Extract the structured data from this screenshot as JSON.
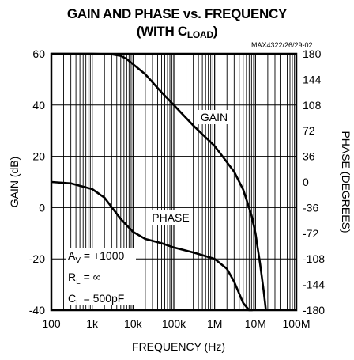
{
  "header": {
    "title_line1": "GAIN AND PHASE  vs. FREQUENCY",
    "title_line2_prefix": "(WITH C",
    "title_line2_sub": "LOAD",
    "title_line2_suffix": ")",
    "part_code": "MAX4322/26/29-02"
  },
  "conditions": {
    "line1_sym": "A",
    "line1_sub": "V",
    "line1_val": " = +1000",
    "line2_sym": "R",
    "line2_sub": "L",
    "line2_val": " = ∞",
    "line3_sym": "C",
    "line3_sub": "L",
    "line3_val": " = 500pF"
  },
  "chart_data": {
    "type": "line",
    "title": "GAIN AND PHASE vs. FREQUENCY (WITH CLOAD)",
    "xlabel": "FREQUENCY (Hz)",
    "ylabel": "GAIN (dB)",
    "ylabel_right": "PHASE (DEGREES)",
    "xscale": "log",
    "xlim": [
      100,
      100000000
    ],
    "ylim": [
      -40,
      60
    ],
    "ylim_right": [
      -180,
      180
    ],
    "xticks": [
      100,
      1000,
      10000,
      100000,
      1000000,
      10000000,
      100000000
    ],
    "xtick_labels": [
      "100",
      "1k",
      "10k",
      "100k",
      "1M",
      "10M",
      "100M"
    ],
    "yticks": [
      -40,
      -20,
      0,
      20,
      40,
      60
    ],
    "ytick_labels": [
      "-40",
      "-20",
      "0",
      "20",
      "40",
      "60"
    ],
    "yticks_right": [
      -180,
      -144,
      -108,
      -72,
      -36,
      0,
      36,
      72,
      108,
      144,
      180
    ],
    "ytick_labels_right": [
      "-180",
      "-144",
      "-108",
      "-72",
      "-36",
      "0",
      "36",
      "72",
      "108",
      "144",
      "180"
    ],
    "grid": true,
    "series": [
      {
        "name": "GAIN",
        "axis": "left",
        "x": [
          100,
          1000,
          3000,
          5000,
          7000,
          10000,
          20000,
          50000,
          100000,
          300000,
          1000000,
          3000000,
          5000000,
          8000000,
          10000000,
          13000000,
          16000000,
          18000000
        ],
        "y": [
          60,
          60,
          59.8,
          59.2,
          58,
          56,
          52,
          45,
          40,
          32,
          24,
          14,
          7,
          -3,
          -10,
          -22,
          -33,
          -40
        ]
      },
      {
        "name": "PHASE",
        "axis": "right",
        "x": [
          100,
          300,
          1000,
          2000,
          5000,
          10000,
          20000,
          50000,
          100000,
          300000,
          1000000,
          2000000,
          3000000,
          5000000,
          7000000,
          8500000
        ],
        "y": [
          0,
          -2,
          -10,
          -22,
          -52,
          -70,
          -80,
          -86,
          -92,
          -99,
          -108,
          -122,
          -140,
          -170,
          -180,
          -180
        ]
      }
    ]
  }
}
